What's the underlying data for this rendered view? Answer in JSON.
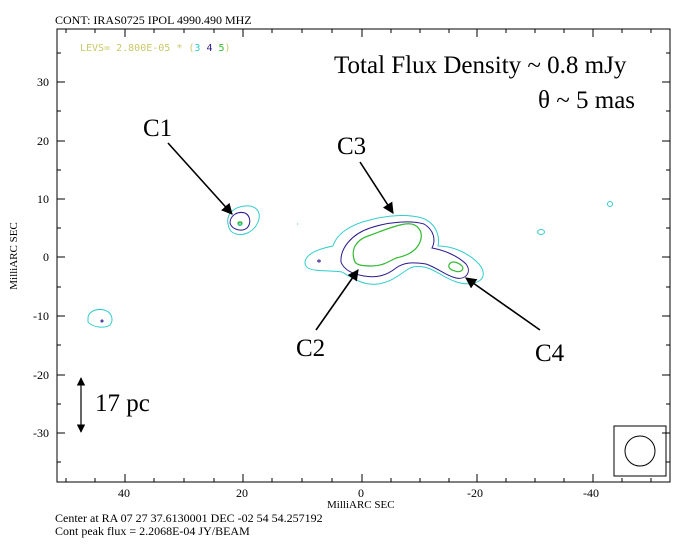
{
  "header": {
    "title": "CONT: IRAS0725  IPOL  4990.490 MHZ"
  },
  "levels": {
    "prefix": "LEVS= 2.800E-05 * (",
    "values": [
      "3",
      "4",
      "5"
    ],
    "suffix": ")",
    "colors": [
      "#33cccc",
      "#2a1a8c",
      "#33bb33"
    ]
  },
  "annotations": {
    "flux": "Total Flux Density ~ 0.8 mJy",
    "theta": "θ ~ 5 mas",
    "scale": "17 pc",
    "components": [
      "C1",
      "C2",
      "C3",
      "C4"
    ]
  },
  "axes": {
    "xlabel": "MilliARC SEC",
    "ylabel": "MilliARC SEC",
    "x_ticks": [
      "40",
      "20",
      "0",
      "-20",
      "-40"
    ],
    "y_ticks": [
      "30",
      "20",
      "10",
      "0",
      "-10",
      "-20",
      "-30"
    ]
  },
  "footer": {
    "center": "Center at RA 07 27 37.6130001  DEC -02 54 54.257192",
    "peak": "Cont peak flux =  2.2068E-04 JY/BEAM"
  }
}
